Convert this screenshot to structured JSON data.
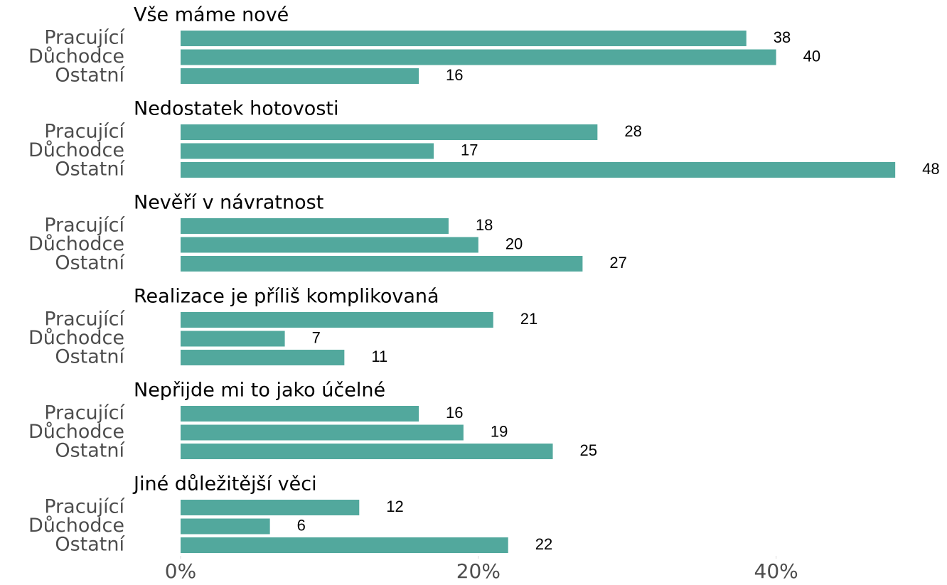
{
  "chart_data": {
    "type": "bar",
    "orientation": "horizontal",
    "color": "#52a89d",
    "categories": [
      "Pracující",
      "Důchodce",
      "Ostatní"
    ],
    "groups": [
      {
        "title": "Vše máme nové",
        "values": [
          38,
          40,
          16
        ]
      },
      {
        "title": "Nedostatek hotovosti",
        "values": [
          28,
          17,
          48
        ]
      },
      {
        "title": "Nevěří v návratnost",
        "values": [
          18,
          20,
          27
        ]
      },
      {
        "title": "Realizace je příliš komplikovaná",
        "values": [
          21,
          7,
          11
        ]
      },
      {
        "title": "Nepřijde mi to jako účelné",
        "values": [
          16,
          19,
          25
        ]
      },
      {
        "title": "Jiné důležitější věci",
        "values": [
          12,
          6,
          22
        ]
      }
    ],
    "xlim": [
      0,
      51
    ],
    "xticks": [
      {
        "value": 0,
        "label": "0%"
      },
      {
        "value": 20,
        "label": "20%"
      },
      {
        "value": 40,
        "label": "40%"
      }
    ]
  }
}
